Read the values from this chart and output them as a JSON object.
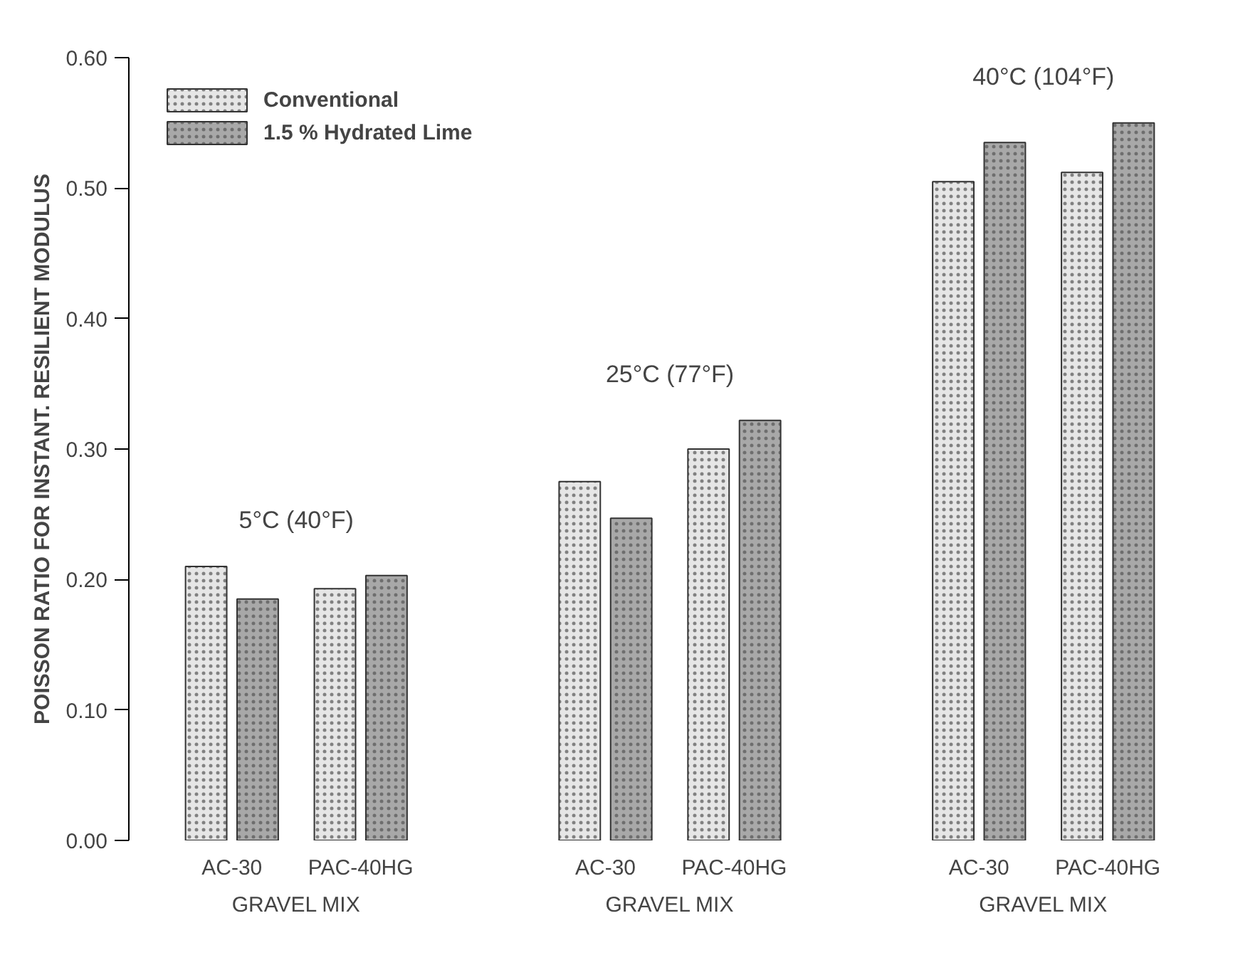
{
  "chart_data": {
    "type": "bar",
    "ylabel": "POISSON RATIO FOR INSTANT. RESILIENT MODULUS",
    "categories": [
      "AC-30",
      "PAC-40HG",
      "AC-30",
      "PAC-40HG",
      "AC-30",
      "PAC-40HG"
    ],
    "series": [
      {
        "name": "Conventional",
        "color": "#e6e6e6",
        "values": [
          0.21,
          0.193,
          0.275,
          0.3,
          0.505,
          0.512
        ]
      },
      {
        "name": "1.5 % Hydrated Lime",
        "color": "#a8a8a8",
        "values": [
          0.185,
          0.203,
          0.247,
          0.322,
          0.535,
          0.55
        ]
      }
    ],
    "ylim": [
      0,
      0.6
    ],
    "yticks": [
      {
        "value": 0,
        "label": "0.00"
      },
      {
        "value": 0.1,
        "label": "0.10"
      },
      {
        "value": 0.2,
        "label": "0.20"
      },
      {
        "value": 0.3,
        "label": "0.30"
      },
      {
        "value": 0.4,
        "label": "0.40"
      },
      {
        "value": 0.5,
        "label": "0.50"
      },
      {
        "value": 0.6,
        "label": "0.60"
      }
    ],
    "annotations": [
      "5°C (40°F)",
      "25°C (77°F)",
      "40°C (104°F)",
      "GRAVEL MIX",
      "GRAVEL MIX",
      "GRAVEL MIX"
    ],
    "legend": "top left",
    "grid": false
  }
}
